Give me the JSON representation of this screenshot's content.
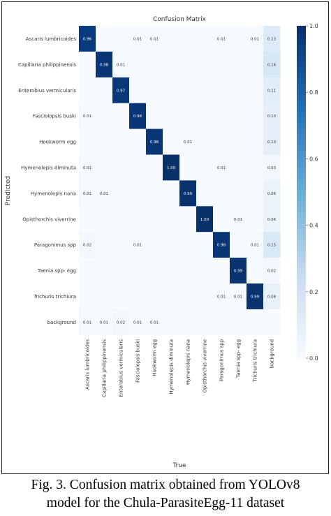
{
  "chart_data": {
    "type": "heatmap",
    "title": "Confusion Matrix",
    "xlabel": "True",
    "ylabel": "Predicted",
    "row_labels": [
      "Ascaris lumbricoides",
      "Capillaria philippinensis",
      "Enterobius vermicularis",
      "Fasciolopsis buski",
      "Hookworm egg",
      "Hymenolepis diminuta",
      "Hymenolepis nana",
      "Opisthorchis viverrine",
      "Paragonimus spp",
      "Taenia spp- egg",
      "Trichuris trichiura",
      "background"
    ],
    "col_labels": [
      "Ascaris lumbricoides",
      "Capillaria philippinensis",
      "Enterobius vermicularis",
      "Fasciolopsis buski",
      "Hookworm egg",
      "Hymenolepis diminuta",
      "Hymenolepis nana",
      "Opisthorchis viverrine",
      "Paragonimus spp",
      "Taenia spp- egg",
      "Trichuris trichiura",
      "background"
    ],
    "values": [
      [
        0.96,
        null,
        null,
        0.01,
        0.01,
        null,
        null,
        null,
        0.01,
        null,
        0.01,
        0.13
      ],
      [
        null,
        0.98,
        0.01,
        null,
        null,
        null,
        null,
        null,
        null,
        null,
        null,
        0.16
      ],
      [
        null,
        null,
        0.97,
        null,
        null,
        null,
        null,
        null,
        null,
        null,
        null,
        0.11
      ],
      [
        0.01,
        null,
        null,
        0.98,
        null,
        null,
        null,
        null,
        null,
        null,
        null,
        0.1
      ],
      [
        null,
        null,
        null,
        null,
        0.98,
        null,
        0.01,
        null,
        null,
        null,
        null,
        0.1
      ],
      [
        0.01,
        null,
        null,
        null,
        null,
        1.0,
        null,
        null,
        0.01,
        null,
        null,
        0.03
      ],
      [
        0.01,
        0.01,
        null,
        null,
        null,
        null,
        0.99,
        null,
        null,
        null,
        null,
        0.06
      ],
      [
        null,
        null,
        null,
        null,
        null,
        null,
        null,
        1.0,
        null,
        0.01,
        null,
        0.06
      ],
      [
        0.02,
        null,
        null,
        0.01,
        null,
        null,
        null,
        null,
        0.98,
        null,
        0.01,
        0.15
      ],
      [
        null,
        null,
        null,
        null,
        null,
        null,
        null,
        null,
        null,
        0.99,
        null,
        0.02
      ],
      [
        null,
        null,
        null,
        null,
        null,
        null,
        null,
        null,
        0.01,
        0.01,
        0.99,
        0.08
      ],
      [
        0.01,
        0.01,
        0.02,
        0.01,
        0.01,
        null,
        null,
        null,
        null,
        null,
        null,
        null
      ]
    ],
    "colorbar": {
      "range": [
        0.0,
        1.0
      ],
      "ticks": [
        "0.0",
        "0.2",
        "0.4",
        "0.6",
        "0.8",
        "1.0"
      ]
    },
    "colormap": {
      "low": "#f7fbff",
      "high": "#08306b"
    }
  },
  "caption": {
    "line1": "Fig. 3. Confusion matrix obtained from YOLOv8",
    "line2": "model for the Chula-ParasiteEgg-11 dataset"
  }
}
